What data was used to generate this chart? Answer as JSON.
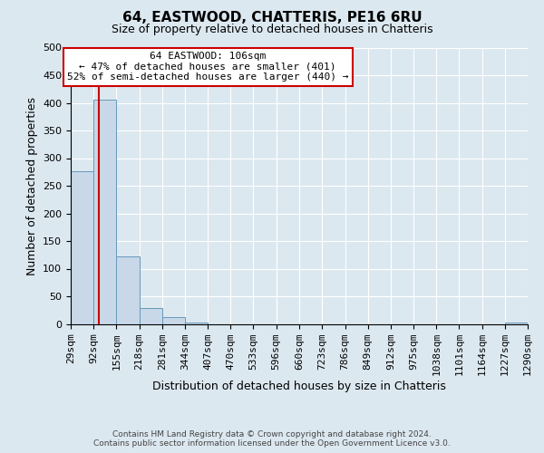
{
  "title": "64, EASTWOOD, CHATTERIS, PE16 6RU",
  "subtitle": "Size of property relative to detached houses in Chatteris",
  "xlabel": "Distribution of detached houses by size in Chatteris",
  "ylabel": "Number of detached properties",
  "bin_edges": [
    29,
    92,
    155,
    218,
    281,
    344,
    407,
    470,
    533,
    596,
    660,
    723,
    786,
    849,
    912,
    975,
    1038,
    1101,
    1164,
    1227,
    1290
  ],
  "bin_labels": [
    "29sqm",
    "92sqm",
    "155sqm",
    "218sqm",
    "281sqm",
    "344sqm",
    "407sqm",
    "470sqm",
    "533sqm",
    "596sqm",
    "660sqm",
    "723sqm",
    "786sqm",
    "849sqm",
    "912sqm",
    "975sqm",
    "1038sqm",
    "1101sqm",
    "1164sqm",
    "1227sqm",
    "1290sqm"
  ],
  "bar_heights": [
    277,
    405,
    122,
    28,
    13,
    3,
    0,
    0,
    0,
    0,
    0,
    0,
    0,
    0,
    0,
    0,
    0,
    0,
    0,
    3
  ],
  "bar_color": "#c8d8e8",
  "bar_edge_color": "#6699bb",
  "property_line_x": 106,
  "red_line_color": "#cc0000",
  "annotation_title": "64 EASTWOOD: 106sqm",
  "annotation_line1": "← 47% of detached houses are smaller (401)",
  "annotation_line2": "52% of semi-detached houses are larger (440) →",
  "annotation_box_facecolor": "#ffffff",
  "annotation_box_edgecolor": "#cc0000",
  "ylim": [
    0,
    500
  ],
  "yticks": [
    0,
    50,
    100,
    150,
    200,
    250,
    300,
    350,
    400,
    450,
    500
  ],
  "footer1": "Contains HM Land Registry data © Crown copyright and database right 2024.",
  "footer2": "Contains public sector information licensed under the Open Government Licence v3.0.",
  "background_color": "#dce8f0",
  "grid_color": "#ffffff",
  "title_fontsize": 11,
  "subtitle_fontsize": 9,
  "axis_label_fontsize": 9,
  "tick_fontsize": 8,
  "annotation_fontsize": 8,
  "footer_fontsize": 6.5
}
